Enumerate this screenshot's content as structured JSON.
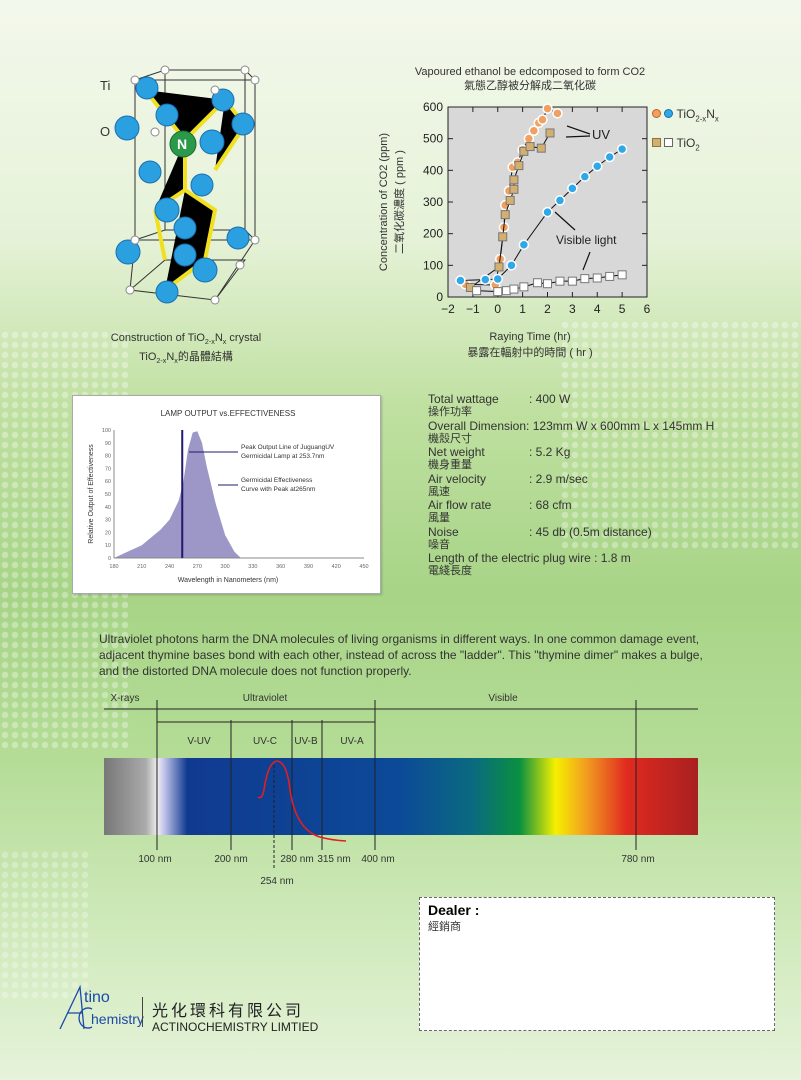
{
  "crystal": {
    "label_ti": "Ti",
    "label_o": "O",
    "label_n": "N",
    "caption_en": "Construction of TiO",
    "caption_en_sub1": "2-x",
    "caption_en_mid": "N",
    "caption_en_sub2": "x",
    "caption_en_end": " crystal",
    "caption_zh_pre": "TiO",
    "caption_zh_sub1": "2-x",
    "caption_zh_mid": "N",
    "caption_zh_sub2": "x",
    "caption_zh_end": "的晶體結構"
  },
  "co2_chart": {
    "annot_uv": "UV",
    "annot_visible": "Visible light",
    "legend": [
      {
        "label": "TiO",
        "sub": "2-x",
        "label2": "N",
        "sub2": "x"
      },
      {
        "label": "TiO",
        "sub": "2",
        "label2": "",
        "sub2": ""
      }
    ]
  },
  "lamp_chart": {
    "annot_peak_line1": "Peak Output Line of JuguangUV",
    "annot_peak_line2": "Germicidal Lamp at 253.7nm",
    "annot_curve_line1": "Germicidal Effectiveness",
    "annot_curve_line2": "Curve with Peak at265nm"
  },
  "specs": [
    {
      "label": "Total wattage",
      "value": ": 400 W",
      "zh": "操作功率"
    },
    {
      "label": "Overall Dimension",
      "value": ": 123mm W x 600mm L x 145mm H",
      "zh": "機殼尺寸"
    },
    {
      "label": "Net weight",
      "value": ": 5.2 Kg",
      "zh": "機身重量"
    },
    {
      "label": "Air velocity",
      "value": ": 2.9 m/sec",
      "zh": "風速"
    },
    {
      "label": "Air flow rate",
      "value": ": 68 cfm",
      "zh": "風量"
    },
    {
      "label": "Noise",
      "value": ": 45 db (0.5m distance)",
      "zh": "噪音"
    },
    {
      "label": "Length of the electric plug wire",
      "value": " : 1.8 m",
      "zh": "電綫長度"
    }
  ],
  "paragraph": "Ultraviolet photons harm the DNA molecules of living organisms in different ways. In one common damage event, adjacent thymine bases bond with each other, instead of across the \"ladder\". This \"thymine dimer\" makes a bulge, and the distorted DNA molecule does not function properly.",
  "spectrum": {
    "regions": [
      "X-rays",
      "Ultraviolet",
      "Visible"
    ],
    "uv_bands": [
      "V-UV",
      "UV-C",
      "UV-B",
      "UV-A"
    ],
    "wavelengths": [
      "100 nm",
      "200 nm",
      "280 nm",
      "315 nm",
      "400 nm",
      "780 nm"
    ],
    "peak": "254 nm"
  },
  "dealer": {
    "title": "Dealer :",
    "title_zh": "經銷商"
  },
  "company": {
    "logo_text": "ActinoChemistry",
    "name_zh": "光化環科有限公司",
    "name_en": "ACTINOCHEMISTRY LIMTIED"
  },
  "chart_data": [
    {
      "type": "scatter",
      "title": "Vapoured ethanol be edcomposed to form CO2",
      "title_zh": "氣態乙醇被分解成二氧化碳",
      "xlabel": "Raying Time (hr)",
      "xlabel_zh": "暴露在輻射中的時間 ( hr )",
      "ylabel": "Concentration of CO2 (ppm)",
      "ylabel_zh": "二氧化碳濃度 ( ppm )",
      "xlim": [
        -2,
        6
      ],
      "ylim": [
        0,
        600
      ],
      "xticks": [
        -2,
        -1,
        0,
        1,
        2,
        3,
        4,
        5,
        6
      ],
      "yticks": [
        0,
        100,
        200,
        300,
        400,
        500,
        600
      ],
      "legend_position": "right",
      "background": "#d8d8d8",
      "series": [
        {
          "name": "TiO2-xNx",
          "condition": "UV",
          "marker": "circle",
          "color": "#f0a060",
          "x": [
            -1.3,
            -0.1,
            0.1,
            0.25,
            0.3,
            0.45,
            0.6,
            0.8,
            1.0,
            1.25,
            1.45,
            1.65,
            1.8,
            2.0,
            2.4
          ],
          "y": [
            40,
            38,
            120,
            220,
            290,
            335,
            410,
            425,
            465,
            500,
            525,
            550,
            560,
            595,
            580
          ]
        },
        {
          "name": "TiO2",
          "condition": "UV",
          "marker": "square",
          "color": "#d4b070",
          "x": [
            -1.1,
            0.05,
            0.2,
            0.3,
            0.5,
            0.65,
            0.65,
            0.85,
            1.05,
            1.3,
            1.75,
            2.1
          ],
          "y": [
            30,
            95,
            190,
            260,
            305,
            340,
            370,
            415,
            460,
            475,
            470,
            518
          ]
        },
        {
          "name": "TiO2-xNx",
          "condition": "Visible light",
          "marker": "circle",
          "color": "#30a8e8",
          "x": [
            -1.5,
            -0.5,
            0,
            0.55,
            1.05,
            2,
            2.5,
            3,
            3.5,
            4,
            4.5,
            5
          ],
          "y": [
            52,
            55,
            57,
            100,
            165,
            268,
            305,
            343,
            380,
            413,
            442,
            467
          ]
        },
        {
          "name": "TiO2",
          "condition": "Visible light",
          "marker": "square",
          "color": "#ffffff",
          "x": [
            -0.85,
            0,
            0.35,
            0.65,
            1.05,
            1.6,
            2,
            2.5,
            3,
            3.5,
            4,
            4.5,
            5
          ],
          "y": [
            20,
            17,
            20,
            25,
            32,
            45,
            42,
            50,
            50,
            58,
            60,
            65,
            70
          ]
        }
      ]
    },
    {
      "type": "area",
      "title": "LAMP OUTPUT vs.EFFECTIVENESS",
      "xlabel": "Wavelength in Nanometers (nm)",
      "ylabel": "Relative  Output of  Effectiveness",
      "xlim": [
        180,
        450
      ],
      "ylim": [
        0,
        100
      ],
      "xticks": [
        180,
        210,
        240,
        270,
        300,
        330,
        360,
        390,
        420,
        450
      ],
      "yticks": [
        0,
        10,
        20,
        30,
        40,
        50,
        60,
        70,
        80,
        90,
        100
      ],
      "fill_color": "#9d97c8",
      "line_color": "#201a6e",
      "x": [
        180,
        210,
        230,
        240,
        250,
        255,
        260,
        265,
        270,
        275,
        280,
        290,
        300,
        310,
        317
      ],
      "y": [
        0,
        10,
        22,
        30,
        45,
        60,
        85,
        98,
        99,
        90,
        72,
        42,
        18,
        5,
        0
      ],
      "peak_line_x": 253.7
    }
  ]
}
